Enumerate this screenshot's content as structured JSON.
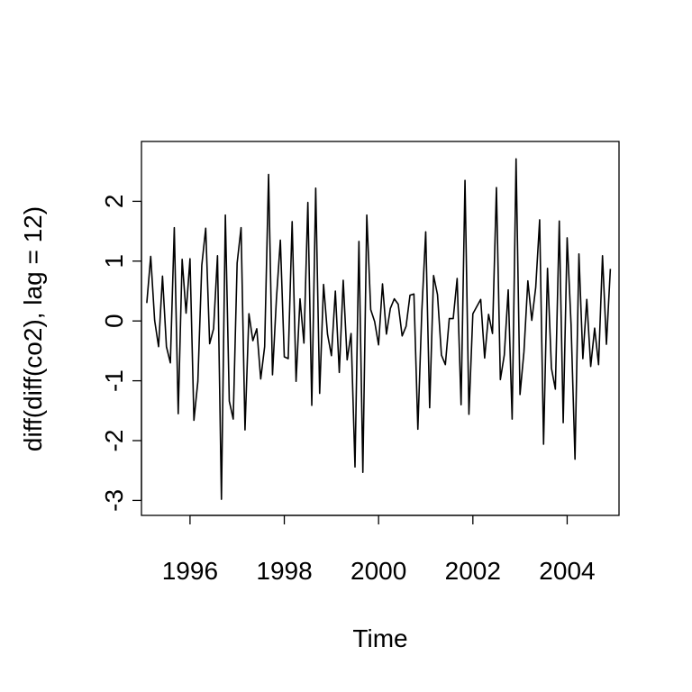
{
  "chart_data": {
    "type": "line",
    "xlabel": "Time",
    "ylabel": "diff(diff(co2), lag = 12)",
    "xlim": [
      1994.97,
      2005.1
    ],
    "ylim": [
      -3.25,
      3.0
    ],
    "x_ticks": [
      1996,
      1998,
      2000,
      2002,
      2004
    ],
    "x_tick_labels": [
      "1996",
      "1998",
      "2000",
      "2002",
      "2004"
    ],
    "y_ticks": [
      -3,
      -2,
      -1,
      0,
      1,
      2
    ],
    "y_tick_labels": [
      "-3",
      "-2",
      "-1",
      "0",
      "1",
      "2"
    ],
    "grid": false,
    "series": [
      {
        "start": 1995.083,
        "frequency": 12,
        "color": "#000000",
        "values": [
          0.3,
          1.08,
          0.01,
          -0.43,
          0.75,
          -0.43,
          -0.7,
          1.56,
          -1.55,
          1.03,
          0.13,
          1.04,
          -1.66,
          -1.01,
          0.93,
          1.55,
          -0.38,
          -0.13,
          1.09,
          -2.98,
          1.77,
          -1.34,
          -1.64,
          0.97,
          1.56,
          -1.82,
          0.12,
          -0.33,
          -0.13,
          -0.97,
          -0.43,
          2.45,
          -0.9,
          0.37,
          1.35,
          -0.6,
          -0.63,
          1.66,
          -1.01,
          0.37,
          -0.37,
          1.98,
          -1.41,
          2.22,
          -1.21,
          0.61,
          -0.22,
          -0.58,
          0.5,
          -0.86,
          0.68,
          -0.65,
          -0.21,
          -2.44,
          1.33,
          -2.53,
          1.77,
          0.19,
          -0.01,
          -0.4,
          0.62,
          -0.22,
          0.21,
          0.37,
          0.28,
          -0.25,
          -0.09,
          0.43,
          0.45,
          -1.81,
          0.15,
          1.49,
          -1.45,
          0.76,
          0.44,
          -0.57,
          -0.73,
          0.04,
          0.04,
          0.71,
          -1.4,
          2.35,
          -1.56,
          0.12,
          0.24,
          0.36,
          -0.62,
          0.11,
          -0.21,
          2.23,
          -0.98,
          -0.57,
          0.52,
          -1.64,
          2.71,
          -1.23,
          -0.52,
          0.67,
          0.01,
          0.56,
          1.69,
          -2.06,
          0.88,
          -0.79,
          -1.14,
          1.67,
          -1.7,
          1.39,
          -0.06,
          -2.31,
          1.12,
          -0.63,
          0.36,
          -0.76,
          -0.12,
          -0.73,
          1.09,
          -0.39,
          0.87
        ]
      }
    ]
  }
}
